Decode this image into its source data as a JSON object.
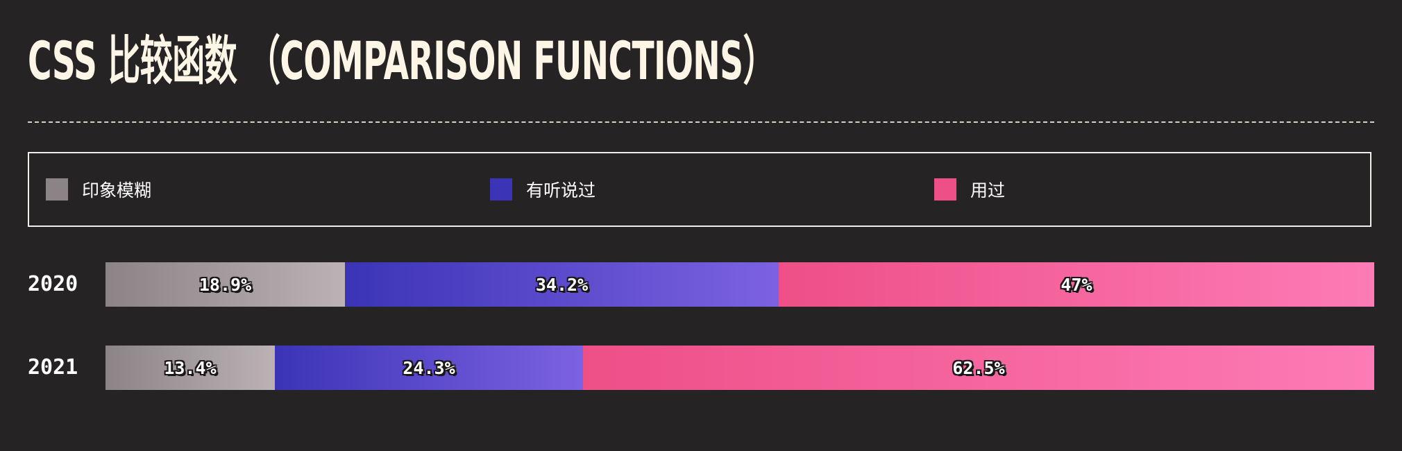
{
  "page": {
    "background": "#262325",
    "title": "CSS 比较函数 （COMPARISON FUNCTIONS）"
  },
  "legend": {
    "items": [
      {
        "label": "印象模糊",
        "color": "#8c8387"
      },
      {
        "label": "有听说过",
        "color": "#3b34b6"
      },
      {
        "label": "用过",
        "color": "#ee4f87"
      }
    ]
  },
  "chart_data": {
    "type": "bar",
    "stacked": true,
    "orientation": "horizontal",
    "normalized_percent": true,
    "categories": [
      "2020",
      "2021"
    ],
    "series": [
      {
        "name": "印象模糊",
        "values": [
          18.9,
          13.4
        ],
        "labels": [
          "18.9%",
          "13.4%"
        ],
        "gradient": [
          "#8c8387",
          "#bcb2b6"
        ]
      },
      {
        "name": "有听说过",
        "values": [
          34.2,
          24.3
        ],
        "labels": [
          "34.2%",
          "24.3%"
        ],
        "gradient": [
          "#3b34b6",
          "#7c62e2"
        ]
      },
      {
        "name": "用过",
        "values": [
          47,
          62.5
        ],
        "labels": [
          "47%",
          "62.5%"
        ],
        "gradient": [
          "#ee4f87",
          "#fd7bb6"
        ]
      }
    ],
    "legend_position": "top",
    "grid": false
  }
}
